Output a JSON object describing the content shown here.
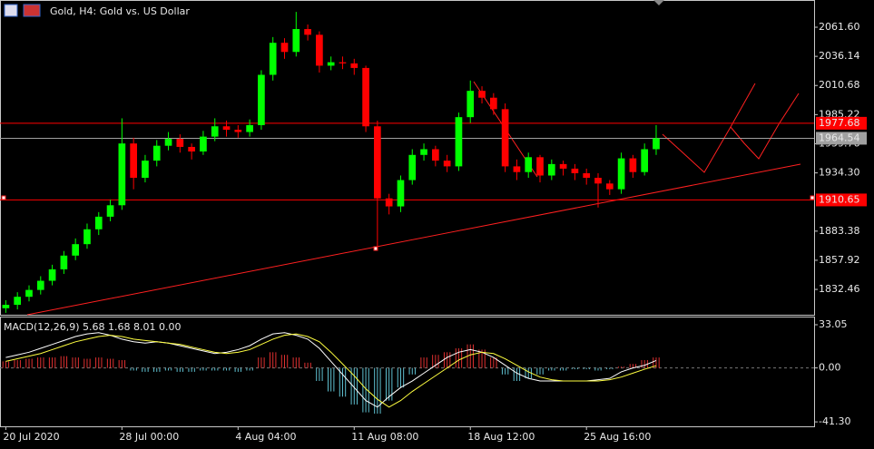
{
  "chart_data": [
    {
      "type": "candlestick",
      "title": "Gold, H4:  Gold vs. US Dollar",
      "open": [
        1816,
        1819,
        1826,
        1832,
        1840,
        1850,
        1862,
        1872,
        1885,
        1896,
        1906,
        1960,
        1930,
        1945,
        1958,
        1964,
        1957,
        1953,
        1966,
        1975,
        1972,
        1970,
        1976,
        2020,
        2048,
        2040,
        2060,
        2055,
        2028,
        2031,
        2030,
        2026,
        1975,
        1912,
        1905,
        1928,
        1950,
        1955,
        1945,
        1940,
        1983,
        2006,
        2000,
        1990,
        1940,
        1935,
        1948,
        1932,
        1942,
        1938,
        1934,
        1930,
        1925,
        1920,
        1947,
        1935,
        1955
      ],
      "high": [
        1823,
        1830,
        1836,
        1844,
        1854,
        1866,
        1877,
        1890,
        1900,
        1911,
        1982,
        1965,
        1950,
        1963,
        1970,
        1968,
        1960,
        1971,
        1982,
        1980,
        1976,
        1981,
        2024,
        2053,
        2052,
        2075,
        2064,
        2058,
        2036,
        2036,
        2034,
        2028,
        1980,
        1916,
        1932,
        1955,
        1960,
        1958,
        1950,
        1987,
        2015,
        2010,
        2004,
        1995,
        1946,
        1952,
        1950,
        1946,
        1945,
        1942,
        1938,
        1934,
        1928,
        1952,
        1950,
        1960,
        1976
      ],
      "low": [
        1812,
        1815,
        1822,
        1828,
        1836,
        1846,
        1858,
        1868,
        1880,
        1892,
        1902,
        1920,
        1926,
        1940,
        1954,
        1952,
        1946,
        1950,
        1962,
        1966,
        1965,
        1966,
        1972,
        2015,
        2034,
        2036,
        2050,
        2022,
        2024,
        2025,
        2020,
        1970,
        1867,
        1898,
        1900,
        1924,
        1945,
        1940,
        1935,
        1936,
        1978,
        1995,
        1985,
        1935,
        1928,
        1930,
        1926,
        1928,
        1932,
        1928,
        1924,
        1904,
        1915,
        1916,
        1930,
        1932,
        1950
      ],
      "close": [
        1819,
        1826,
        1832,
        1840,
        1850,
        1862,
        1872,
        1885,
        1896,
        1906,
        1960,
        1930,
        1945,
        1958,
        1964,
        1957,
        1953,
        1966,
        1975,
        1972,
        1970,
        1976,
        2020,
        2048,
        2040,
        2060,
        2055,
        2028,
        2031,
        2030,
        2026,
        1975,
        1912,
        1905,
        1928,
        1950,
        1955,
        1945,
        1940,
        1983,
        2006,
        2000,
        1990,
        1940,
        1935,
        1948,
        1932,
        1942,
        1938,
        1934,
        1930,
        1925,
        1920,
        1947,
        1935,
        1955,
        1964.54
      ],
      "up_color": "#00ff00",
      "down_color": "#ff0000",
      "xlim": [
        -0.5,
        69.6
      ],
      "xticks": [
        {
          "value": 0,
          "label": "20 Jul 2020"
        },
        {
          "value": 10,
          "label": "28 Jul 00:00"
        },
        {
          "value": 20,
          "label": "4 Aug 04:00"
        },
        {
          "value": 30,
          "label": "11 Aug 08:00"
        },
        {
          "value": 40,
          "label": "18 Aug 12:00"
        },
        {
          "value": 50,
          "label": "25 Aug 16:00"
        }
      ],
      "ylim": [
        1810.3,
        2085.4
      ],
      "yticks": [
        {
          "value": 2061.6,
          "label": "2061.60"
        },
        2036.14,
        2010.68,
        1985.22,
        1959.76,
        {
          "value": 1934.3,
          "label": "1934.30"
        },
        1883.38,
        1857.92,
        1832.46
      ],
      "hlines": [
        {
          "value": 1977.68,
          "color": "#ff0000"
        },
        {
          "value": 1964.54,
          "color": "#a0a0a0"
        },
        {
          "value": 1910.65,
          "color": "#ff0000"
        }
      ]
    },
    {
      "type": "macd",
      "label": "MACD(12,26,9) 5.68 1.68 8.01 0.00",
      "ylim": [
        -44.7,
        38.6
      ],
      "yticks": [
        33.05,
        {
          "value": 0,
          "label": "0.00"
        },
        {
          "value": -41.3,
          "label": "-41.30"
        }
      ],
      "histogram": {
        "up_color": "#e03030",
        "down_color": "#5fc0d0",
        "values": [
          5,
          6,
          7,
          8,
          8,
          9,
          8,
          7,
          8,
          7,
          6,
          -2,
          -3,
          -3,
          -2,
          -3,
          -3,
          -2,
          -2,
          -2,
          -3,
          -2,
          8,
          12,
          10,
          8,
          4,
          -10,
          -18,
          -22,
          -28,
          -34,
          -35,
          -25,
          -15,
          -5,
          8,
          10,
          12,
          15,
          18,
          14,
          8,
          -5,
          -10,
          -8,
          -5,
          -2,
          -2,
          -1,
          -1,
          -2,
          -1,
          1,
          3,
          6,
          8
        ]
      },
      "lines": [
        {
          "color": "#ffffff",
          "values": [
            8,
            10,
            12,
            15,
            18,
            21,
            24,
            26,
            27,
            25,
            22,
            20,
            19,
            20,
            19,
            17,
            15,
            13,
            11,
            12,
            14,
            17,
            22,
            26,
            27,
            25,
            22,
            15,
            5,
            -5,
            -15,
            -25,
            -30,
            -22,
            -15,
            -10,
            -4,
            2,
            8,
            12,
            14,
            12,
            8,
            2,
            -4,
            -8,
            -10,
            -10,
            -10,
            -10,
            -10,
            -9,
            -8,
            -3,
            0,
            2,
            5.68
          ]
        },
        {
          "color": "#ffff40",
          "values": [
            5,
            7,
            9,
            11,
            14,
            17,
            20,
            22,
            24,
            25,
            24,
            22,
            21,
            20,
            19,
            18,
            16,
            14,
            12,
            11,
            12,
            14,
            18,
            22,
            25,
            26,
            24,
            20,
            12,
            3,
            -6,
            -16,
            -24,
            -30,
            -25,
            -18,
            -12,
            -6,
            0,
            6,
            10,
            12,
            11,
            7,
            2,
            -3,
            -7,
            -9,
            -10,
            -10,
            -10,
            -10,
            -9,
            -7,
            -4,
            -1,
            1.68
          ]
        }
      ]
    }
  ]
}
